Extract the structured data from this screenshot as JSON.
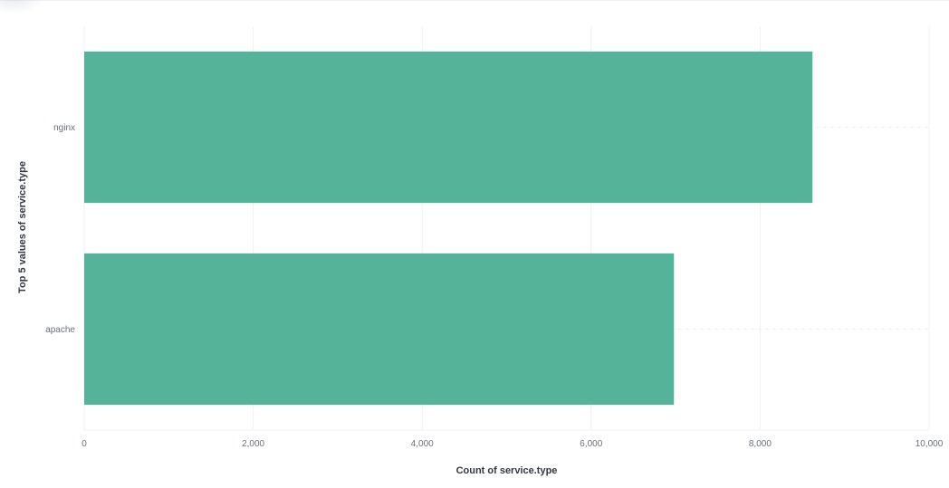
{
  "colors": {
    "bar": "#54b399",
    "grid": "#eef0f3",
    "tick_text": "#69707d",
    "axis_title": "#343741"
  },
  "chart_data": {
    "type": "bar",
    "orientation": "horizontal",
    "categories": [
      "nginx",
      "apache"
    ],
    "values": [
      8620,
      6980
    ],
    "xlabel": "Count of service.type",
    "ylabel": "Top 5 values of service.type",
    "xlim": [
      0,
      10000
    ],
    "xticks": [
      "0",
      "2,000",
      "4,000",
      "6,000",
      "8,000",
      "10,000"
    ],
    "xtick_values": [
      0,
      2000,
      4000,
      6000,
      8000,
      10000
    ],
    "grid": true,
    "legend": "none"
  }
}
